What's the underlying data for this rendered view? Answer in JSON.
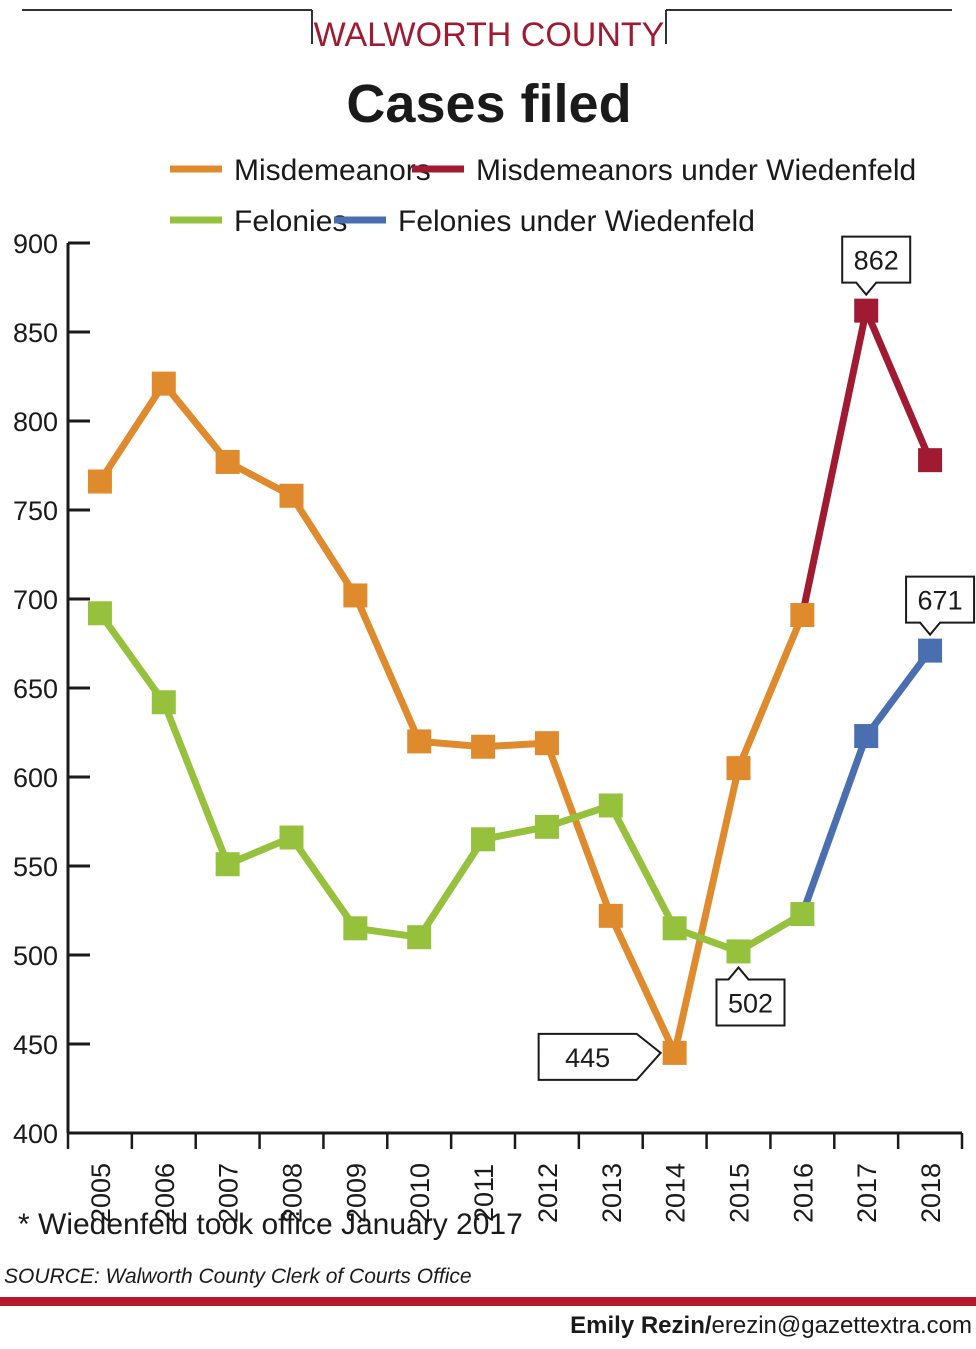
{
  "header": {
    "kicker": "WALWORTH COUNTY",
    "title": "Cases filed"
  },
  "colors": {
    "misd": "#df8a2c",
    "misd_w": "#a01a32",
    "fel": "#96c13c",
    "fel_w": "#4a6fb0",
    "rule": "#b5172b"
  },
  "chart_data": {
    "type": "line",
    "title": "Cases filed",
    "x": [
      "2005",
      "2006",
      "2007",
      "2008",
      "2009",
      "2010",
      "2011",
      "2012",
      "2013",
      "2014",
      "2015",
      "2016",
      "2017",
      "2018"
    ],
    "ylim": [
      400,
      900
    ],
    "yticks": [
      900,
      850,
      800,
      750,
      700,
      650,
      600,
      550,
      500,
      450,
      400
    ],
    "legend": "top",
    "series": [
      {
        "name": "Misdemeanors",
        "color": "#df8a2c",
        "x": [
          "2005",
          "2006",
          "2007",
          "2008",
          "2009",
          "2010",
          "2011",
          "2012",
          "2013",
          "2014",
          "2015",
          "2016"
        ],
        "values": [
          766,
          821,
          777,
          758,
          702,
          620,
          617,
          619,
          522,
          445,
          605,
          691
        ]
      },
      {
        "name": "Misdemeanors under Wiedenfeld",
        "color": "#a01a32",
        "x": [
          "2016",
          "2017",
          "2018"
        ],
        "values": [
          691,
          862,
          778
        ],
        "markers_from": 1
      },
      {
        "name": "Felonies",
        "color": "#96c13c",
        "x": [
          "2005",
          "2006",
          "2007",
          "2008",
          "2009",
          "2010",
          "2011",
          "2012",
          "2013",
          "2014",
          "2015",
          "2016"
        ],
        "values": [
          692,
          642,
          551,
          566,
          515,
          510,
          565,
          572,
          584,
          515,
          502,
          523
        ]
      },
      {
        "name": "Felonies under Wiedenfeld",
        "color": "#4a6fb0",
        "x": [
          "2016",
          "2017",
          "2018"
        ],
        "values": [
          523,
          623,
          671
        ],
        "markers_from": 1
      }
    ],
    "annotations": [
      {
        "text": "862",
        "x": "2017",
        "y": 862
      },
      {
        "text": "671",
        "x": "2018",
        "y": 671
      },
      {
        "text": "445",
        "x": "2014",
        "y": 445
      },
      {
        "text": "502",
        "x": "2015",
        "y": 502
      }
    ]
  },
  "footer": {
    "note": "* Wiedenfeld took office January 2017",
    "source": "SOURCE: Walworth County Clerk of Courts Office",
    "credit_name": "Emily Rezin/",
    "credit_email": "erezin@gazettextra.com"
  }
}
